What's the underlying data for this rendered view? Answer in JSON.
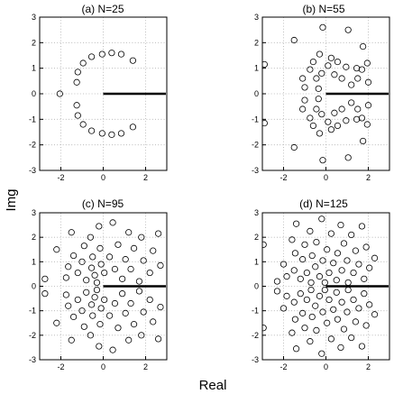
{
  "figure": {
    "xlabel": "Real",
    "ylabel": "Img"
  },
  "chart_data": [
    {
      "type": "scatter",
      "title": "(a) N=25",
      "xlim": [
        -3,
        3
      ],
      "ylim": [
        -3,
        3
      ],
      "xticks": [
        -2,
        0,
        2
      ],
      "yticks": [
        -3,
        -2,
        -1,
        0,
        1,
        2,
        3
      ],
      "grid": true,
      "marker": "open-circle",
      "line_segment": {
        "x": [
          0,
          3
        ],
        "y": [
          0,
          0
        ]
      },
      "points": [
        [
          -2.05,
          0.0
        ],
        [
          -1.25,
          0.45
        ],
        [
          -1.25,
          -0.45
        ],
        [
          -1.2,
          0.85
        ],
        [
          -1.2,
          -0.85
        ],
        [
          -0.95,
          1.2
        ],
        [
          -0.95,
          -1.2
        ],
        [
          -0.55,
          1.45
        ],
        [
          -0.55,
          -1.45
        ],
        [
          -0.05,
          1.55
        ],
        [
          -0.05,
          -1.55
        ],
        [
          0.4,
          1.6
        ],
        [
          0.4,
          -1.6
        ],
        [
          0.85,
          1.55
        ],
        [
          0.85,
          -1.55
        ],
        [
          1.4,
          1.3
        ],
        [
          1.4,
          -1.3
        ]
      ]
    },
    {
      "type": "scatter",
      "title": "(b) N=55",
      "xlim": [
        -3,
        3
      ],
      "ylim": [
        -3,
        3
      ],
      "xticks": [
        -2,
        0,
        2
      ],
      "yticks": [
        -3,
        -2,
        -1,
        0,
        1,
        2,
        3
      ],
      "grid": true,
      "marker": "open-circle",
      "line_segment": {
        "x": [
          0,
          3
        ],
        "y": [
          0,
          0
        ]
      },
      "points": [
        [
          -2.9,
          1.15
        ],
        [
          -2.9,
          -1.15
        ],
        [
          -1.5,
          2.1
        ],
        [
          -1.5,
          -2.1
        ],
        [
          -1.1,
          0.6
        ],
        [
          -1.1,
          -0.6
        ],
        [
          -1.0,
          0.25
        ],
        [
          -1.0,
          -0.25
        ],
        [
          -0.75,
          0.95
        ],
        [
          -0.75,
          -0.95
        ],
        [
          -0.6,
          1.25
        ],
        [
          -0.6,
          -1.25
        ],
        [
          -0.45,
          0.6
        ],
        [
          -0.45,
          -0.6
        ],
        [
          -0.35,
          0.2
        ],
        [
          -0.35,
          -0.2
        ],
        [
          -0.3,
          1.55
        ],
        [
          -0.3,
          -1.55
        ],
        [
          -0.2,
          0.8
        ],
        [
          -0.2,
          -0.8
        ],
        [
          -0.15,
          2.6
        ],
        [
          -0.15,
          -2.6
        ],
        [
          0.1,
          1.1
        ],
        [
          0.1,
          -1.1
        ],
        [
          0.25,
          1.4
        ],
        [
          0.25,
          -1.4
        ],
        [
          0.4,
          0.75
        ],
        [
          0.4,
          -0.75
        ],
        [
          0.55,
          1.25
        ],
        [
          0.55,
          -1.25
        ],
        [
          0.75,
          0.6
        ],
        [
          0.75,
          -0.6
        ],
        [
          0.95,
          1.05
        ],
        [
          0.95,
          -1.05
        ],
        [
          1.05,
          2.5
        ],
        [
          1.05,
          -2.5
        ],
        [
          1.2,
          0.35
        ],
        [
          1.2,
          -0.35
        ],
        [
          1.45,
          1.0
        ],
        [
          1.45,
          -1.0
        ],
        [
          1.5,
          0.6
        ],
        [
          1.5,
          -0.6
        ],
        [
          1.7,
          0.95
        ],
        [
          1.7,
          -0.95
        ],
        [
          1.75,
          1.85
        ],
        [
          1.75,
          -1.85
        ],
        [
          1.95,
          1.2
        ],
        [
          1.95,
          -1.2
        ],
        [
          2.0,
          0.45
        ],
        [
          2.0,
          -0.45
        ]
      ]
    },
    {
      "type": "scatter",
      "title": "(c) N=95",
      "xlim": [
        -3,
        3
      ],
      "ylim": [
        -3,
        3
      ],
      "xticks": [
        -2,
        0,
        2
      ],
      "yticks": [
        -3,
        -2,
        -1,
        0,
        1,
        2,
        3
      ],
      "grid": true,
      "marker": "open-circle",
      "line_segment": {
        "x": [
          0,
          3
        ],
        "y": [
          0,
          0
        ]
      },
      "points": [
        [
          -2.75,
          0.3
        ],
        [
          -2.75,
          -0.3
        ],
        [
          -2.2,
          1.5
        ],
        [
          -2.2,
          -1.5
        ],
        [
          -1.75,
          0.35
        ],
        [
          -1.75,
          -0.35
        ],
        [
          -1.65,
          0.8
        ],
        [
          -1.65,
          -0.8
        ],
        [
          -1.5,
          2.2
        ],
        [
          -1.5,
          -2.2
        ],
        [
          -1.4,
          1.25
        ],
        [
          -1.4,
          -1.25
        ],
        [
          -1.2,
          0.55
        ],
        [
          -1.2,
          -0.55
        ],
        [
          -1.0,
          1.0
        ],
        [
          -1.0,
          -1.0
        ],
        [
          -0.9,
          1.65
        ],
        [
          -0.9,
          -1.65
        ],
        [
          -0.8,
          0.25
        ],
        [
          -0.8,
          -0.25
        ],
        [
          -0.6,
          2.0
        ],
        [
          -0.6,
          -2.0
        ],
        [
          -0.55,
          0.75
        ],
        [
          -0.55,
          -0.75
        ],
        [
          -0.5,
          1.2
        ],
        [
          -0.5,
          -1.2
        ],
        [
          -0.4,
          0.45
        ],
        [
          -0.4,
          -0.45
        ],
        [
          -0.3,
          0.15
        ],
        [
          -0.3,
          -0.15
        ],
        [
          -0.2,
          2.45
        ],
        [
          -0.2,
          -2.45
        ],
        [
          -0.15,
          1.55
        ],
        [
          -0.15,
          -1.55
        ],
        [
          -0.1,
          0.9
        ],
        [
          -0.1,
          -0.9
        ],
        [
          0.05,
          0.55
        ],
        [
          0.05,
          -0.55
        ],
        [
          0.3,
          1.2
        ],
        [
          0.3,
          -1.2
        ],
        [
          0.45,
          2.6
        ],
        [
          0.45,
          -2.6
        ],
        [
          0.55,
          0.7
        ],
        [
          0.55,
          -0.7
        ],
        [
          0.7,
          1.7
        ],
        [
          0.7,
          -1.7
        ],
        [
          0.9,
          0.3
        ],
        [
          0.9,
          -0.3
        ],
        [
          1.05,
          1.1
        ],
        [
          1.05,
          -1.1
        ],
        [
          1.2,
          2.2
        ],
        [
          1.2,
          -2.2
        ],
        [
          1.3,
          0.7
        ],
        [
          1.3,
          -0.7
        ],
        [
          1.45,
          1.55
        ],
        [
          1.45,
          -1.55
        ],
        [
          1.7,
          0.2
        ],
        [
          1.7,
          -0.2
        ],
        [
          1.8,
          2.0
        ],
        [
          1.8,
          -2.0
        ],
        [
          1.9,
          1.05
        ],
        [
          1.9,
          -1.05
        ],
        [
          2.2,
          0.55
        ],
        [
          2.2,
          -0.55
        ],
        [
          2.35,
          1.45
        ],
        [
          2.35,
          -1.45
        ],
        [
          2.6,
          2.15
        ],
        [
          2.6,
          -2.15
        ],
        [
          2.7,
          0.85
        ],
        [
          2.7,
          -0.85
        ]
      ]
    },
    {
      "type": "scatter",
      "title": "(d) N=125",
      "xlim": [
        -3,
        3
      ],
      "ylim": [
        -3,
        3
      ],
      "xticks": [
        -2,
        0,
        2
      ],
      "yticks": [
        -3,
        -2,
        -1,
        0,
        1,
        2,
        3
      ],
      "grid": true,
      "marker": "open-circle",
      "line_segment": {
        "x": [
          0,
          3
        ],
        "y": [
          0,
          0
        ]
      },
      "points": [
        [
          -2.95,
          1.7
        ],
        [
          -2.95,
          -1.7
        ],
        [
          -2.3,
          0.2
        ],
        [
          -2.3,
          -0.2
        ],
        [
          -2.0,
          0.9
        ],
        [
          -2.0,
          -0.9
        ],
        [
          -1.85,
          0.4
        ],
        [
          -1.85,
          -0.4
        ],
        [
          -1.6,
          1.9
        ],
        [
          -1.6,
          -1.9
        ],
        [
          -1.5,
          0.65
        ],
        [
          -1.5,
          -0.65
        ],
        [
          -1.45,
          1.35
        ],
        [
          -1.45,
          -1.35
        ],
        [
          -1.4,
          2.55
        ],
        [
          -1.4,
          -2.55
        ],
        [
          -1.2,
          0.3
        ],
        [
          -1.2,
          -0.3
        ],
        [
          -1.1,
          1.1
        ],
        [
          -1.1,
          -1.1
        ],
        [
          -1.0,
          1.7
        ],
        [
          -1.0,
          -1.7
        ],
        [
          -0.9,
          0.55
        ],
        [
          -0.9,
          -0.55
        ],
        [
          -0.75,
          2.25
        ],
        [
          -0.75,
          -2.25
        ],
        [
          -0.7,
          0.15
        ],
        [
          -0.7,
          -0.15
        ],
        [
          -0.65,
          1.25
        ],
        [
          -0.65,
          -1.25
        ],
        [
          -0.5,
          0.8
        ],
        [
          -0.5,
          -0.8
        ],
        [
          -0.45,
          1.8
        ],
        [
          -0.45,
          -1.8
        ],
        [
          -0.3,
          0.4
        ],
        [
          -0.3,
          -0.4
        ],
        [
          -0.2,
          2.75
        ],
        [
          -0.2,
          -2.75
        ],
        [
          -0.15,
          1.05
        ],
        [
          -0.15,
          -1.05
        ],
        [
          -0.05,
          0.15
        ],
        [
          -0.05,
          -0.15
        ],
        [
          0.05,
          1.5
        ],
        [
          0.05,
          -1.5
        ],
        [
          0.15,
          0.55
        ],
        [
          0.15,
          -0.55
        ],
        [
          0.25,
          2.15
        ],
        [
          0.25,
          -2.15
        ],
        [
          0.35,
          0.95
        ],
        [
          0.35,
          -0.95
        ],
        [
          0.5,
          0.25
        ],
        [
          0.5,
          -0.25
        ],
        [
          0.55,
          1.35
        ],
        [
          0.55,
          -1.35
        ],
        [
          0.7,
          2.5
        ],
        [
          0.7,
          -2.5
        ],
        [
          0.75,
          0.65
        ],
        [
          0.75,
          -0.65
        ],
        [
          0.85,
          1.75
        ],
        [
          0.85,
          -1.75
        ],
        [
          1.0,
          1.05
        ],
        [
          1.0,
          -1.05
        ],
        [
          1.05,
          0.15
        ],
        [
          1.05,
          -0.15
        ],
        [
          1.2,
          2.1
        ],
        [
          1.2,
          -2.1
        ],
        [
          1.3,
          0.55
        ],
        [
          1.3,
          -0.55
        ],
        [
          1.4,
          1.45
        ],
        [
          1.4,
          -1.45
        ],
        [
          1.55,
          0.9
        ],
        [
          1.55,
          -0.9
        ],
        [
          1.7,
          2.45
        ],
        [
          1.7,
          -2.45
        ],
        [
          1.8,
          0.3
        ],
        [
          1.8,
          -0.3
        ],
        [
          1.9,
          1.6
        ],
        [
          1.9,
          -1.6
        ],
        [
          2.05,
          0.75
        ],
        [
          2.05,
          -0.75
        ],
        [
          2.3,
          1.15
        ],
        [
          2.3,
          -1.15
        ]
      ]
    }
  ]
}
